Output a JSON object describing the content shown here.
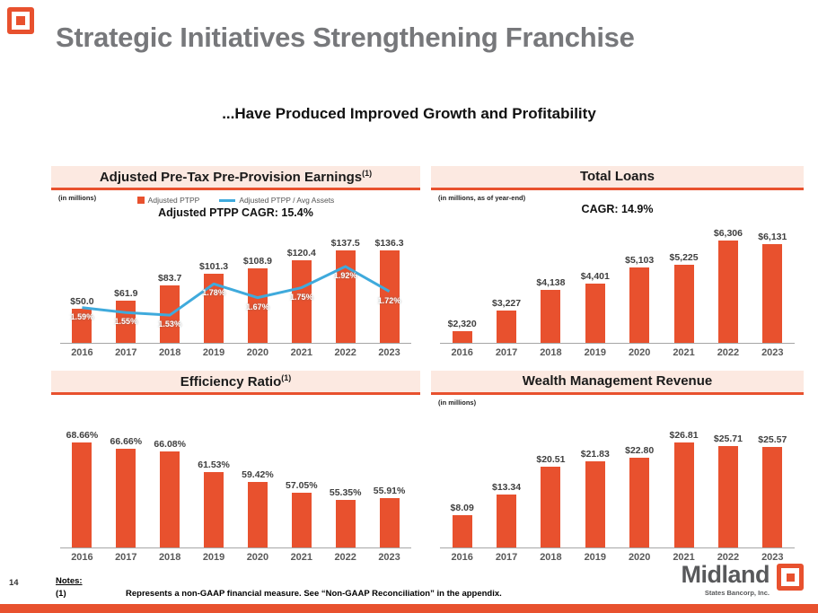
{
  "slide": {
    "title": "Strategic Initiatives Strengthening Franchise",
    "subtitle": "...Have Produced Improved Growth and Profitability",
    "page_number": "14",
    "footnotes": {
      "heading": "Notes:",
      "items": [
        {
          "ref": "(1)",
          "text": "Represents a non-GAAP financial measure. See “Non-GAAP Reconciliation” in the appendix."
        }
      ]
    },
    "logo": {
      "wordmark": "Midland",
      "subtext": "States Bancorp, Inc."
    }
  },
  "colors": {
    "accent_orange": "#E8512E",
    "line_blue": "#3FAADC",
    "header_bg": "#FCE9E1",
    "title_gray": "#77787B"
  },
  "chart_data": [
    {
      "type": "bar",
      "title": "Adjusted Pre-Tax Pre-Provision Earnings",
      "title_sup": "(1)",
      "units_note": "(in millions)",
      "cagr_note": "Adjusted PTPP CAGR: 15.4%",
      "legend": [
        {
          "label": "Adjusted PTPP"
        },
        {
          "label": "Adjusted PTPP / Avg Assets"
        }
      ],
      "legend_position": "top",
      "grid": false,
      "categories": [
        "2016",
        "2017",
        "2018",
        "2019",
        "2020",
        "2021",
        "2022",
        "2023"
      ],
      "series": [
        {
          "name": "Adjusted PTPP",
          "values": [
            50.0,
            61.9,
            83.7,
            101.3,
            108.9,
            120.4,
            137.5,
            136.3
          ],
          "labels": [
            "$50.0",
            "$61.9",
            "$83.7",
            "$101.3",
            "$108.9",
            "$120.4",
            "$137.5",
            "$136.3"
          ]
        },
        {
          "name": "Adjusted PTPP / Avg Assets",
          "values": [
            1.59,
            1.55,
            1.53,
            1.78,
            1.67,
            1.75,
            1.92,
            1.72
          ],
          "labels": [
            "1.59%",
            "1.55%",
            "1.53%",
            "1.78%",
            "1.67%",
            "1.75%",
            "1.92%",
            "1.72%"
          ]
        }
      ],
      "ylim": [
        0,
        155
      ],
      "line_ylim": [
        1.3,
        2.15
      ]
    },
    {
      "type": "bar",
      "title": "Total Loans",
      "units_note": "(in millions, as of year-end)",
      "cagr_note": "CAGR: 14.9%",
      "grid": false,
      "categories": [
        "2016",
        "2017",
        "2018",
        "2019",
        "2020",
        "2021",
        "2022",
        "2023"
      ],
      "values": [
        2320,
        3227,
        4138,
        4401,
        5103,
        5225,
        6306,
        6131
      ],
      "labels": [
        "$2,320",
        "$3,227",
        "$4,138",
        "$4,401",
        "$5,103",
        "$5,225",
        "$6,306",
        "$6,131"
      ],
      "ylim": [
        1800,
        7000
      ]
    },
    {
      "type": "bar",
      "title": "Efficiency Ratio",
      "title_sup": "(1)",
      "grid": false,
      "categories": [
        "2016",
        "2017",
        "2018",
        "2019",
        "2020",
        "2021",
        "2022",
        "2023"
      ],
      "values": [
        68.66,
        66.66,
        66.08,
        61.53,
        59.42,
        57.05,
        55.35,
        55.91
      ],
      "labels": [
        "68.66%",
        "66.66%",
        "66.08%",
        "61.53%",
        "59.42%",
        "57.05%",
        "55.35%",
        "55.91%"
      ],
      "ylim": [
        45,
        71
      ]
    },
    {
      "type": "bar",
      "title": "Wealth Management Revenue",
      "units_note": "(in millions)",
      "grid": false,
      "categories": [
        "2016",
        "2017",
        "2018",
        "2019",
        "2020",
        "2021",
        "2022",
        "2023"
      ],
      "values": [
        8.09,
        13.34,
        20.51,
        21.83,
        22.8,
        26.81,
        25.71,
        25.57
      ],
      "labels": [
        "$8.09",
        "$13.34",
        "$20.51",
        "$21.83",
        "$22.80",
        "$26.81",
        "$25.71",
        "$25.57"
      ],
      "ylim": [
        0,
        30
      ]
    }
  ]
}
